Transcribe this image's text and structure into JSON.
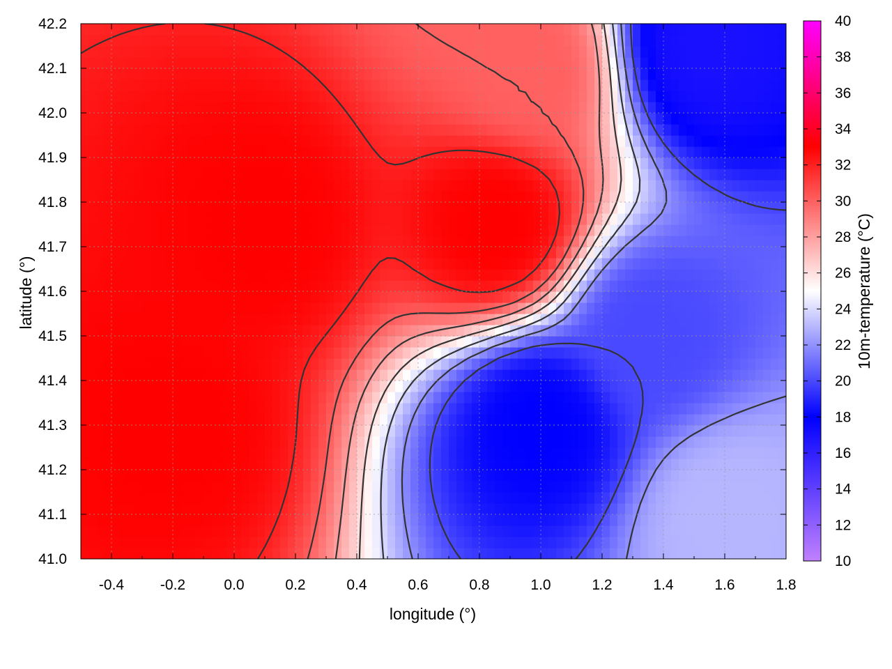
{
  "chart_data": {
    "type": "heatmap",
    "title": "",
    "xlabel": "longitude (°)",
    "ylabel": "latitude (°)",
    "colorbar_label": "10m-temperature (°C)",
    "xlim": [
      -0.5,
      1.8
    ],
    "ylim": [
      41.0,
      42.2
    ],
    "x_ticks": [
      -0.4,
      -0.2,
      0.0,
      0.2,
      0.4,
      0.6,
      0.8,
      1.0,
      1.2,
      1.4,
      1.6,
      1.8
    ],
    "x_tick_labels": [
      "-0.4",
      "-0.2",
      "0.0",
      "0.2",
      "0.4",
      "0.6",
      "0.8",
      "1.0",
      "1.2",
      "1.4",
      "1.6",
      "1.8"
    ],
    "y_ticks": [
      41.0,
      41.1,
      41.2,
      41.3,
      41.4,
      41.5,
      41.6,
      41.7,
      41.8,
      41.9,
      42.0,
      42.1,
      42.2
    ],
    "y_tick_labels": [
      "41.0",
      "41.1",
      "41.2",
      "41.3",
      "41.4",
      "41.5",
      "41.6",
      "41.7",
      "41.8",
      "41.9",
      "42.0",
      "42.1",
      "42.2"
    ],
    "colorbar_range": [
      10,
      40
    ],
    "colorbar_ticks": [
      10,
      12,
      14,
      16,
      18,
      20,
      22,
      24,
      26,
      28,
      30,
      32,
      34,
      36,
      38,
      40
    ],
    "colorbar_tick_labels": [
      "10",
      "12",
      "14",
      "16",
      "18",
      "20",
      "22",
      "24",
      "26",
      "28",
      "30",
      "32",
      "34",
      "36",
      "38",
      "40"
    ],
    "colormap": [
      {
        "value": 10,
        "color": "#c080ff"
      },
      {
        "value": 18,
        "color": "#0000ff"
      },
      {
        "value": 25,
        "color": "#ffffff"
      },
      {
        "value": 33,
        "color": "#ff0000"
      },
      {
        "value": 40,
        "color": "#ff00ff"
      }
    ],
    "grid": true,
    "contour_color": "#333333",
    "field_regions": [
      {
        "lon": -0.2,
        "lat": 41.3,
        "temp": 33
      },
      {
        "lon": 0.1,
        "lat": 41.75,
        "temp": 33
      },
      {
        "lon": 0.85,
        "lat": 41.75,
        "temp": 33
      },
      {
        "lon": 0.95,
        "lat": 42.1,
        "temp": 30
      },
      {
        "lon": 1.0,
        "lat": 41.3,
        "temp": 18
      },
      {
        "lon": 1.55,
        "lat": 42.15,
        "temp": 17
      },
      {
        "lon": 1.35,
        "lat": 41.5,
        "temp": 20
      },
      {
        "lon": 1.6,
        "lat": 41.1,
        "temp": 23
      }
    ]
  }
}
